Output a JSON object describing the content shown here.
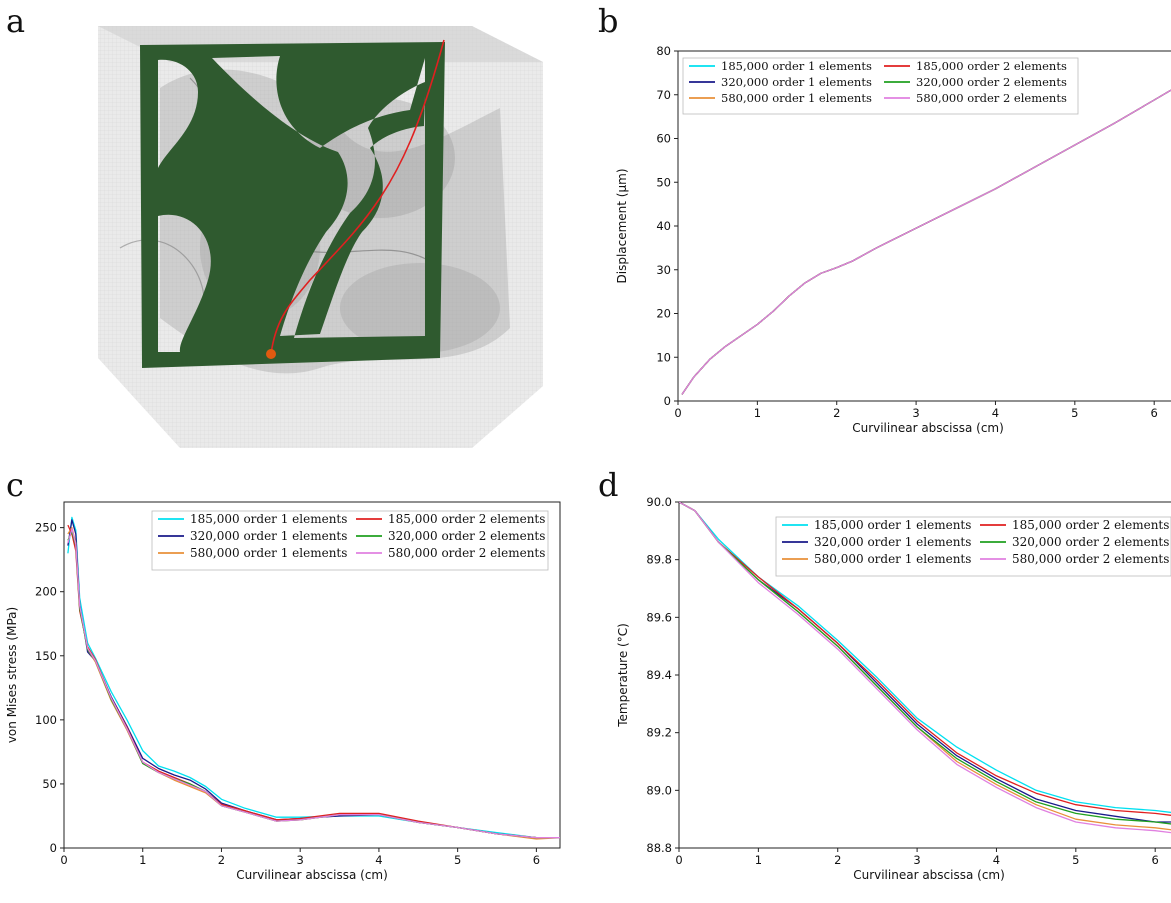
{
  "panels": {
    "a": "a",
    "b": "b",
    "c": "c",
    "d": "d"
  },
  "colors": {
    "cyan": "#00e0f0",
    "navy": "#1a1a8a",
    "orange": "#e8903a",
    "red": "#e02020",
    "green": "#20a020",
    "violet": "#e080e0",
    "black": "#111111",
    "frame_green": "#2f5a2f",
    "box_grey": "#bdbdbd",
    "point": "#e05a10"
  },
  "chart_data": [
    {
      "id": "b",
      "type": "line",
      "xlabel": "Curvilinear abscissa (cm)",
      "ylabel": "Displacement (μm)",
      "xlim": [
        0,
        6.3
      ],
      "ylim": [
        0,
        80
      ],
      "xticks": [
        "0",
        "1",
        "2",
        "3",
        "4",
        "5",
        "6"
      ],
      "yticks": [
        "0",
        "10",
        "20",
        "30",
        "40",
        "50",
        "60",
        "70",
        "80"
      ],
      "legend_position": "top-left",
      "series": [
        {
          "name": "185,000 order 1 elements",
          "color": "#00e0f0",
          "x": [
            0.05,
            0.2,
            0.4,
            0.6,
            0.8,
            1.0,
            1.2,
            1.4,
            1.6,
            1.8,
            2.0,
            2.2,
            2.5,
            3.0,
            3.5,
            4.0,
            4.5,
            5.0,
            5.5,
            6.0,
            6.3
          ],
          "y": [
            1.5,
            5.5,
            9.5,
            12.5,
            15,
            17.5,
            20.5,
            24,
            27,
            29.2,
            30.5,
            32,
            35,
            39.5,
            44,
            48.5,
            53.5,
            58.5,
            63.5,
            68.8,
            72
          ]
        },
        {
          "name": "320,000 order 1 elements",
          "color": "#1a1a8a",
          "x": [
            0.05,
            0.2,
            0.4,
            0.6,
            0.8,
            1.0,
            1.2,
            1.4,
            1.6,
            1.8,
            2.0,
            2.2,
            2.5,
            3.0,
            3.5,
            4.0,
            4.5,
            5.0,
            5.5,
            6.0,
            6.3
          ],
          "y": [
            1.5,
            5.5,
            9.5,
            12.5,
            15,
            17.5,
            20.5,
            24,
            27,
            29.2,
            30.5,
            32,
            35,
            39.5,
            44,
            48.5,
            53.5,
            58.5,
            63.5,
            68.8,
            72
          ]
        },
        {
          "name": "580,000 order 1 elements",
          "color": "#e8903a",
          "x": [
            0.05,
            0.2,
            0.4,
            0.6,
            0.8,
            1.0,
            1.2,
            1.4,
            1.6,
            1.8,
            2.0,
            2.2,
            2.5,
            3.0,
            3.5,
            4.0,
            4.5,
            5.0,
            5.5,
            6.0,
            6.3
          ],
          "y": [
            1.5,
            5.5,
            9.5,
            12.5,
            15,
            17.5,
            20.5,
            24,
            27,
            29.2,
            30.5,
            32,
            35,
            39.5,
            44,
            48.5,
            53.5,
            58.5,
            63.5,
            68.8,
            72
          ]
        },
        {
          "name": "185,000 order 2 elements",
          "color": "#e02020",
          "x": [
            0.05,
            0.2,
            0.4,
            0.6,
            0.8,
            1.0,
            1.2,
            1.4,
            1.6,
            1.8,
            2.0,
            2.2,
            2.5,
            3.0,
            3.5,
            4.0,
            4.5,
            5.0,
            5.5,
            6.0,
            6.3
          ],
          "y": [
            1.5,
            5.5,
            9.5,
            12.5,
            15,
            17.5,
            20.5,
            24,
            27,
            29.2,
            30.5,
            32,
            35,
            39.5,
            44,
            48.5,
            53.5,
            58.5,
            63.5,
            68.8,
            72
          ]
        },
        {
          "name": "320,000 order 2 elements",
          "color": "#20a020",
          "x": [
            0.05,
            0.2,
            0.4,
            0.6,
            0.8,
            1.0,
            1.2,
            1.4,
            1.6,
            1.8,
            2.0,
            2.2,
            2.5,
            3.0,
            3.5,
            4.0,
            4.5,
            5.0,
            5.5,
            6.0,
            6.3
          ],
          "y": [
            1.5,
            5.5,
            9.5,
            12.5,
            15,
            17.5,
            20.5,
            24,
            27,
            29.2,
            30.5,
            32,
            35,
            39.5,
            44,
            48.5,
            53.5,
            58.5,
            63.5,
            68.8,
            72
          ]
        },
        {
          "name": "580,000 order 2 elements",
          "color": "#e080e0",
          "x": [
            0.05,
            0.2,
            0.4,
            0.6,
            0.8,
            1.0,
            1.2,
            1.4,
            1.6,
            1.8,
            2.0,
            2.2,
            2.5,
            3.0,
            3.5,
            4.0,
            4.5,
            5.0,
            5.5,
            6.0,
            6.3
          ],
          "y": [
            1.5,
            5.5,
            9.5,
            12.5,
            15,
            17.5,
            20.5,
            24,
            27,
            29.2,
            30.5,
            32,
            35,
            39.5,
            44,
            48.5,
            53.5,
            58.5,
            63.5,
            68.8,
            72
          ]
        }
      ]
    },
    {
      "id": "c",
      "type": "line",
      "xlabel": "Curvilinear abscissa (cm)",
      "ylabel": "von Mises stress (MPa)",
      "xlim": [
        0,
        6.3
      ],
      "ylim": [
        0,
        270
      ],
      "xticks": [
        "0",
        "1",
        "2",
        "3",
        "4",
        "5",
        "6"
      ],
      "yticks": [
        "0",
        "50",
        "100",
        "150",
        "200",
        "250"
      ],
      "legend_position": "top-right",
      "series": [
        {
          "name": "185,000 order 1 elements",
          "color": "#00e0f0",
          "x": [
            0.05,
            0.1,
            0.15,
            0.2,
            0.3,
            0.4,
            0.6,
            0.8,
            1.0,
            1.2,
            1.4,
            1.6,
            1.8,
            2.0,
            2.3,
            2.7,
            3.0,
            3.5,
            4.0,
            4.5,
            5.0,
            5.5,
            6.0,
            6.3
          ],
          "y": [
            230,
            258,
            248,
            195,
            160,
            148,
            122,
            100,
            76,
            64,
            60,
            55,
            48,
            38,
            31,
            24,
            24,
            25,
            25,
            20,
            16,
            12,
            8,
            8
          ]
        },
        {
          "name": "320,000 order 1 elements",
          "color": "#1a1a8a",
          "x": [
            0.05,
            0.1,
            0.15,
            0.2,
            0.3,
            0.4,
            0.6,
            0.8,
            1.0,
            1.2,
            1.4,
            1.6,
            1.8,
            2.0,
            2.3,
            2.7,
            3.0,
            3.5,
            4.0,
            4.5,
            5.0,
            5.5,
            6.0,
            6.3
          ],
          "y": [
            236,
            256,
            245,
            190,
            153,
            146,
            118,
            95,
            70,
            62,
            57,
            53,
            46,
            35,
            29,
            22,
            23,
            25,
            26,
            20,
            16,
            11,
            8,
            8
          ]
        },
        {
          "name": "580,000 order 1 elements",
          "color": "#e8903a",
          "x": [
            0.05,
            0.1,
            0.15,
            0.2,
            0.3,
            0.4,
            0.6,
            0.8,
            1.0,
            1.2,
            1.4,
            1.6,
            1.8,
            2.0,
            2.3,
            2.7,
            3.0,
            3.5,
            4.0,
            4.5,
            5.0,
            5.5,
            6.0,
            6.3
          ],
          "y": [
            245,
            250,
            238,
            188,
            155,
            145,
            115,
            92,
            66,
            59,
            53,
            48,
            43,
            33,
            28,
            21,
            22,
            26,
            26,
            20,
            16,
            11,
            7,
            8
          ]
        },
        {
          "name": "185,000 order 2 elements",
          "color": "#e02020",
          "x": [
            0.05,
            0.1,
            0.15,
            0.2,
            0.3,
            0.4,
            0.6,
            0.8,
            1.0,
            1.2,
            1.4,
            1.6,
            1.8,
            2.0,
            2.3,
            2.7,
            3.0,
            3.5,
            4.0,
            4.5,
            5.0,
            5.5,
            6.0,
            6.3
          ],
          "y": [
            252,
            245,
            232,
            185,
            157,
            147,
            117,
            94,
            67,
            60,
            55,
            50,
            44,
            34,
            29,
            22,
            23,
            27,
            27,
            21,
            16,
            11,
            8,
            8
          ]
        },
        {
          "name": "320,000 order 2 elements",
          "color": "#20a020",
          "x": [
            0.05,
            0.1,
            0.15,
            0.2,
            0.3,
            0.4,
            0.6,
            0.8,
            1.0,
            1.2,
            1.4,
            1.6,
            1.8,
            2.0,
            2.3,
            2.7,
            3.0,
            3.5,
            4.0,
            4.5,
            5.0,
            5.5,
            6.0,
            6.3
          ],
          "y": [
            240,
            247,
            236,
            187,
            155,
            146,
            116,
            93,
            66,
            59,
            54,
            50,
            44,
            33,
            28,
            21,
            22,
            26,
            26,
            20,
            16,
            11,
            8,
            8
          ]
        },
        {
          "name": "580,000 order 2 elements",
          "color": "#e080e0",
          "x": [
            0.05,
            0.1,
            0.15,
            0.2,
            0.3,
            0.4,
            0.6,
            0.8,
            1.0,
            1.2,
            1.4,
            1.6,
            1.8,
            2.0,
            2.3,
            2.7,
            3.0,
            3.5,
            4.0,
            4.5,
            5.0,
            5.5,
            6.0,
            6.3
          ],
          "y": [
            238,
            249,
            237,
            189,
            156,
            146,
            117,
            93,
            67,
            59,
            54,
            49,
            44,
            33,
            28,
            21,
            22,
            26,
            26,
            20,
            16,
            11,
            8,
            8
          ]
        }
      ]
    },
    {
      "id": "d",
      "type": "line",
      "xlabel": "Curvilinear abscissa (cm)",
      "ylabel": "Temperature (°C)",
      "xlim": [
        0,
        6.3
      ],
      "ylim": [
        88.8,
        90.0
      ],
      "xticks": [
        "0",
        "1",
        "2",
        "3",
        "4",
        "5",
        "6"
      ],
      "yticks": [
        "88.8",
        "89.0",
        "89.2",
        "89.4",
        "89.6",
        "89.8",
        "90.0"
      ],
      "legend_position": "top-right",
      "series": [
        {
          "name": "185,000 order 1 elements",
          "color": "#00e0f0",
          "x": [
            0,
            0.2,
            0.5,
            1.0,
            1.5,
            2.0,
            2.5,
            3.0,
            3.5,
            4.0,
            4.5,
            5.0,
            5.5,
            6.0,
            6.3
          ],
          "y": [
            90.0,
            89.97,
            89.87,
            89.74,
            89.64,
            89.52,
            89.39,
            89.25,
            89.15,
            89.07,
            89.0,
            88.96,
            88.94,
            88.93,
            88.92
          ]
        },
        {
          "name": "320,000 order 1 elements",
          "color": "#1a1a8a",
          "x": [
            0,
            0.2,
            0.5,
            1.0,
            1.5,
            2.0,
            2.5,
            3.0,
            3.5,
            4.0,
            4.5,
            5.0,
            5.5,
            6.0,
            6.3
          ],
          "y": [
            90.0,
            89.97,
            89.86,
            89.73,
            89.63,
            89.51,
            89.37,
            89.23,
            89.12,
            89.04,
            88.97,
            88.93,
            88.91,
            88.89,
            88.89
          ]
        },
        {
          "name": "580,000 order 1 elements",
          "color": "#e8903a",
          "x": [
            0,
            0.2,
            0.5,
            1.0,
            1.5,
            2.0,
            2.5,
            3.0,
            3.5,
            4.0,
            4.5,
            5.0,
            5.5,
            6.0,
            6.3
          ],
          "y": [
            90.0,
            89.97,
            89.86,
            89.73,
            89.62,
            89.5,
            89.36,
            89.22,
            89.1,
            89.02,
            88.95,
            88.9,
            88.88,
            88.87,
            88.86
          ]
        },
        {
          "name": "185,000 order 2 elements",
          "color": "#e02020",
          "x": [
            0,
            0.2,
            0.5,
            1.0,
            1.5,
            2.0,
            2.5,
            3.0,
            3.5,
            4.0,
            4.5,
            5.0,
            5.5,
            6.0,
            6.3
          ],
          "y": [
            90.0,
            89.97,
            89.86,
            89.74,
            89.63,
            89.51,
            89.38,
            89.24,
            89.13,
            89.05,
            88.99,
            88.95,
            88.93,
            88.92,
            88.91
          ]
        },
        {
          "name": "320,000 order 2 elements",
          "color": "#20a020",
          "x": [
            0,
            0.2,
            0.5,
            1.0,
            1.5,
            2.0,
            2.5,
            3.0,
            3.5,
            4.0,
            4.5,
            5.0,
            5.5,
            6.0,
            6.3
          ],
          "y": [
            90.0,
            89.97,
            89.86,
            89.73,
            89.62,
            89.5,
            89.36,
            89.22,
            89.11,
            89.03,
            88.96,
            88.92,
            88.9,
            88.89,
            88.88
          ]
        },
        {
          "name": "580,000 order 2 elements",
          "color": "#e080e0",
          "x": [
            0,
            0.2,
            0.5,
            1.0,
            1.5,
            2.0,
            2.5,
            3.0,
            3.5,
            4.0,
            4.5,
            5.0,
            5.5,
            6.0,
            6.3
          ],
          "y": [
            90.0,
            89.97,
            89.86,
            89.72,
            89.61,
            89.49,
            89.35,
            89.21,
            89.09,
            89.01,
            88.94,
            88.89,
            88.87,
            88.86,
            88.85
          ]
        }
      ]
    }
  ]
}
